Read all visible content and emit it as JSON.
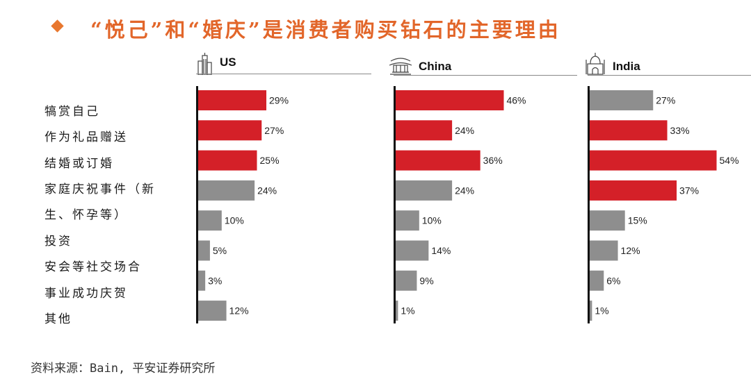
{
  "title": "“悦己”和“婚庆”是消费者购买钻石的主要理由",
  "source": "资料来源：Bain, 平安证券研究所",
  "categories": [
    "犒赏自己",
    "作为礼品赠送",
    "结婚或订婚",
    "家庭庆祝事件（新",
    "生、怀孕等）",
    "投资",
    "安会等社交场合",
    "事业成功庆贺",
    "其他"
  ],
  "colors": {
    "red": "#d42028",
    "gray": "#8e8e8e",
    "title": "#e2662a",
    "bullet": "#e8772e"
  },
  "chart_data": [
    {
      "type": "bar",
      "name": "US",
      "icon": "skyscraper-icon",
      "orientation": "horizontal",
      "categories": [
        "犒赏自己",
        "作为礼品赠送",
        "结婚或订婚",
        "家庭庆祝事件（新生、怀孕等）",
        "投资",
        "安会等社交场合",
        "事业成功庆贺",
        "其他"
      ],
      "values": [
        29,
        27,
        25,
        24,
        10,
        5,
        3,
        12
      ],
      "labels": [
        "29%",
        "27%",
        "25%",
        "24%",
        "10%",
        "5%",
        "3%",
        "12%"
      ],
      "highlight": [
        true,
        true,
        true,
        false,
        false,
        false,
        false,
        false
      ],
      "xlim": [
        0,
        60
      ]
    },
    {
      "type": "bar",
      "name": "China",
      "icon": "temple-icon",
      "orientation": "horizontal",
      "categories": [
        "犒赏自己",
        "作为礼品赠送",
        "结婚或订婚",
        "家庭庆祝事件（新生、怀孕等）",
        "投资",
        "安会等社交场合",
        "事业成功庆贺",
        "其他"
      ],
      "values": [
        46,
        24,
        36,
        24,
        10,
        14,
        9,
        1
      ],
      "labels": [
        "46%",
        "24%",
        "36%",
        "24%",
        "10%",
        "14%",
        "9%",
        "1%"
      ],
      "highlight": [
        true,
        true,
        true,
        false,
        false,
        false,
        false,
        false
      ],
      "xlim": [
        0,
        60
      ]
    },
    {
      "type": "bar",
      "name": "India",
      "icon": "taj-mahal-icon",
      "orientation": "horizontal",
      "categories": [
        "犒赏自己",
        "作为礼品赠送",
        "结婚或订婚",
        "家庭庆祝事件（新生、怀孕等）",
        "投资",
        "安会等社交场合",
        "事业成功庆贺",
        "其他"
      ],
      "values": [
        27,
        33,
        54,
        37,
        15,
        12,
        6,
        1
      ],
      "labels": [
        "27%",
        "33%",
        "54%",
        "37%",
        "15%",
        "12%",
        "6%",
        "1%"
      ],
      "highlight": [
        false,
        true,
        true,
        true,
        false,
        false,
        false,
        false
      ],
      "xlim": [
        0,
        60
      ]
    }
  ]
}
